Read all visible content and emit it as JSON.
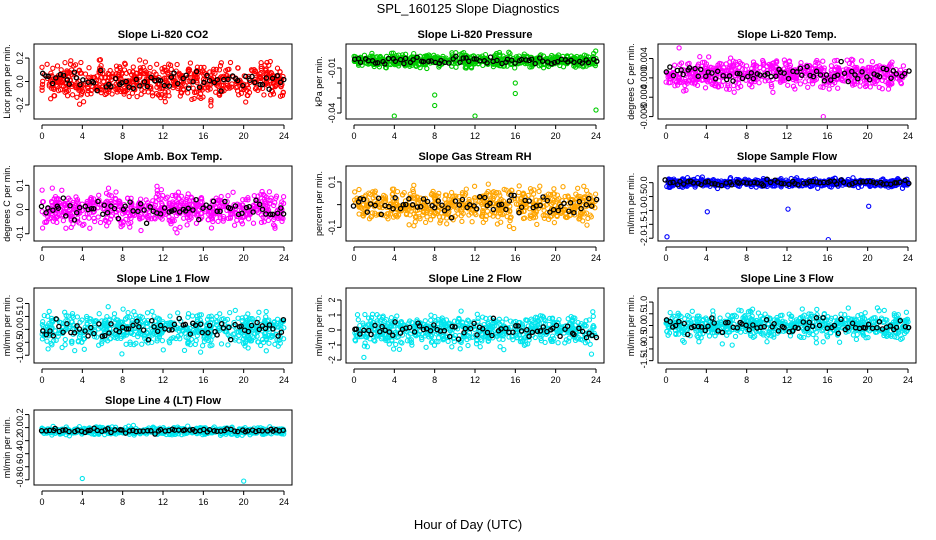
{
  "page": {
    "title": "SPL_160125  Slope Diagnostics",
    "xlabel": "Hour of Day (UTC)"
  },
  "chart_data": [
    {
      "type": "scatter",
      "title": "Slope Li-820 CO2",
      "ylabel": "Licor ppm per min.",
      "xlim": [
        0,
        24
      ],
      "ylim": [
        -0.32,
        0.32
      ],
      "yticks": [
        -0.2,
        0,
        0.2
      ],
      "ytick_labels": [
        "-0.2",
        "0.0",
        "0.2"
      ],
      "xticks": [
        0,
        4,
        8,
        12,
        16,
        20,
        24
      ],
      "color": "#ff0000",
      "baseline": 0.0,
      "spread": 0.1,
      "extremes": [],
      "seed": 11
    },
    {
      "type": "scatter",
      "title": "Slope Li-820 Pressure",
      "ylabel": "kPa per min.",
      "xlim": [
        0,
        24
      ],
      "ylim": [
        -0.044,
        0.006
      ],
      "yticks": [
        -0.04,
        -0.03,
        -0.02,
        -0.01
      ],
      "ytick_labels": [
        "-0.04",
        "",
        "",
        "-0.01"
      ],
      "xticks": [
        0,
        4,
        8,
        12,
        16,
        20,
        24
      ],
      "color": "#00cc00",
      "baseline": -0.005,
      "spread": 0.003,
      "extremes": [
        [
          4,
          -0.042
        ],
        [
          8,
          -0.035
        ],
        [
          8,
          -0.028
        ],
        [
          12,
          -0.042
        ],
        [
          16,
          -0.027
        ],
        [
          16,
          -0.02
        ],
        [
          24,
          -0.038
        ]
      ],
      "seed": 23
    },
    {
      "type": "scatter",
      "title": "Slope Li-820 Temp.",
      "ylabel": "degrees C per min.",
      "xlim": [
        0,
        24
      ],
      "ylim": [
        -0.0085,
        0.007
      ],
      "yticks": [
        -0.008,
        -0.004,
        0,
        0.004
      ],
      "ytick_labels": [
        "-0.008",
        "-0.004",
        "0.000",
        "0.004"
      ],
      "xticks": [
        0,
        4,
        8,
        12,
        16,
        20,
        24
      ],
      "color": "#ff00ff",
      "baseline": 0.0008,
      "spread": 0.002,
      "extremes": [
        [
          1.3,
          0.0062
        ],
        [
          15.6,
          -0.008
        ]
      ],
      "seed": 37
    },
    {
      "type": "scatter",
      "title": "Slope Amb. Box Temp.",
      "ylabel": "degrees C per min.",
      "xlim": [
        0,
        24
      ],
      "ylim": [
        -0.13,
        0.18
      ],
      "yticks": [
        -0.1,
        0,
        0.1
      ],
      "ytick_labels": [
        "-0.1",
        "0.0",
        "0.1"
      ],
      "xticks": [
        0,
        4,
        8,
        12,
        16,
        20,
        24
      ],
      "color": "#ff00ff",
      "baseline": 0.0,
      "spread": 0.045,
      "extremes": [],
      "seed": 41
    },
    {
      "type": "scatter",
      "title": "Slope Gas Stream RH",
      "ylabel": "percent per min.",
      "xlim": [
        0,
        24
      ],
      "ylim": [
        -0.16,
        0.17
      ],
      "yticks": [
        -0.1,
        0,
        0.1
      ],
      "ytick_labels": [
        "-0.1",
        "",
        "0.1"
      ],
      "xticks": [
        0,
        4,
        8,
        12,
        16,
        20,
        24
      ],
      "color": "#ffa500",
      "baseline": 0.0,
      "spread": 0.05,
      "extremes": [],
      "seed": 53
    },
    {
      "type": "scatter",
      "title": "Slope Sample Flow",
      "ylabel": "ml/min per min.",
      "xlim": [
        0,
        24
      ],
      "ylim": [
        -2.1,
        0.6
      ],
      "yticks": [
        -2,
        -1.5,
        -1,
        -0.5,
        0
      ],
      "ytick_labels": [
        "-2.0",
        "-1.5",
        "-1.0",
        "-0.5",
        "0.0"
      ],
      "xticks": [
        0,
        4,
        8,
        12,
        16,
        20,
        24
      ],
      "color": "#0000ff",
      "baseline": 0.0,
      "spread": 0.1,
      "extremes": [
        [
          0.1,
          -1.95
        ],
        [
          4.1,
          -1.05
        ],
        [
          12.1,
          -0.95
        ],
        [
          16.1,
          -2.05
        ],
        [
          20.1,
          -0.85
        ]
      ],
      "seed": 67
    },
    {
      "type": "scatter",
      "title": "Slope Line 1 Flow",
      "ylabel": "ml/min per min.",
      "xlim": [
        0,
        24
      ],
      "ylim": [
        -1.3,
        1.6
      ],
      "yticks": [
        -1,
        -0.5,
        0,
        0.5,
        1
      ],
      "ytick_labels": [
        "-1.0",
        "-0.5",
        "0.0",
        "0.5",
        "1.0"
      ],
      "xticks": [
        0,
        4,
        8,
        12,
        16,
        20,
        24
      ],
      "color": "#00e5ee",
      "baseline": 0.0,
      "spread": 0.45,
      "extremes": [],
      "seed": 71
    },
    {
      "type": "scatter",
      "title": "Slope Line 2 Flow",
      "ylabel": "ml/min per min.",
      "xlim": [
        0,
        24
      ],
      "ylim": [
        -2.2,
        2.8
      ],
      "yticks": [
        -2,
        -1,
        0,
        1,
        2
      ],
      "ytick_labels": [
        "-2",
        "-1",
        "0",
        "1",
        "2"
      ],
      "xticks": [
        0,
        4,
        8,
        12,
        16,
        20,
        24
      ],
      "color": "#00e5ee",
      "baseline": 0.0,
      "spread": 0.7,
      "extremes": [],
      "seed": 83
    },
    {
      "type": "scatter",
      "title": "Slope Line 3 Flow",
      "ylabel": "ml/min per min.",
      "xlim": [
        0,
        24
      ],
      "ylim": [
        -1.6,
        1.6
      ],
      "yticks": [
        -1.5,
        -1,
        -0.5,
        0,
        0.5,
        1
      ],
      "ytick_labels": [
        "-1.5",
        "-1.0",
        "-0.5",
        "0.0",
        "0.5",
        "1.0"
      ],
      "xticks": [
        0,
        4,
        8,
        12,
        16,
        20,
        24
      ],
      "color": "#00e5ee",
      "baseline": 0.0,
      "spread": 0.4,
      "extremes": [],
      "seed": 97
    },
    {
      "type": "scatter",
      "title": "Slope Line 4 (LT) Flow",
      "ylabel": "ml/min per min.",
      "xlim": [
        0,
        24
      ],
      "ylim": [
        -0.88,
        0.27
      ],
      "yticks": [
        -0.8,
        -0.6,
        -0.4,
        -0.2,
        0,
        0.2
      ],
      "ytick_labels": [
        "-0.8",
        "-0.6",
        "-0.4",
        "-0.2",
        "0.0",
        "0.2"
      ],
      "xticks": [
        0,
        4,
        8,
        12,
        16,
        20,
        24
      ],
      "color": "#00e5ee",
      "baseline": -0.05,
      "spread": 0.04,
      "extremes": [
        [
          4,
          -0.78
        ],
        [
          20,
          -0.82
        ]
      ],
      "seed": 101
    }
  ]
}
